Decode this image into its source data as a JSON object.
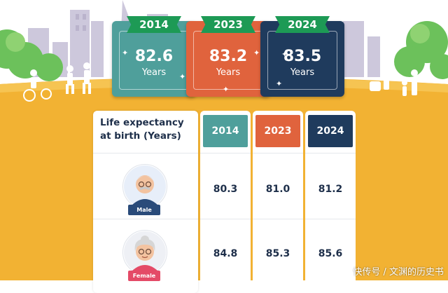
{
  "hero": [
    {
      "year": "2014",
      "value": "82.6",
      "unit": "Years",
      "color": "#4f9f9b"
    },
    {
      "year": "2023",
      "value": "83.2",
      "unit": "Years",
      "color": "#e0633d"
    },
    {
      "year": "2024",
      "value": "83.5",
      "unit": "Years",
      "color": "#1f3b5d"
    }
  ],
  "table": {
    "title": "Life expectancy at birth (Years)",
    "columns": [
      {
        "year": "2014",
        "color": "#4f9f9b"
      },
      {
        "year": "2023",
        "color": "#e0633d"
      },
      {
        "year": "2024",
        "color": "#1f3b5d"
      }
    ],
    "rows": [
      {
        "label": "Male",
        "tag_color": "#2a4b7a",
        "values": [
          "80.3",
          "81.0",
          "81.2"
        ]
      },
      {
        "label": "Female",
        "tag_color": "#e44a67",
        "values": [
          "84.8",
          "85.3",
          "85.6"
        ]
      }
    ]
  },
  "watermark": "快传号 / 文渊的历史书",
  "colors": {
    "ribbon": "#1d9a55",
    "ground": "#f2b233",
    "city": "#c3bdd4",
    "dark_text": "#1e2f4a"
  }
}
